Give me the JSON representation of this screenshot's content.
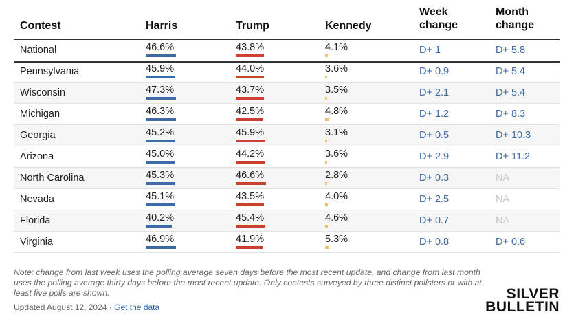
{
  "table": {
    "headers": [
      "Contest",
      "Harris",
      "Trump",
      "Kennedy",
      "Week change",
      "Month change"
    ],
    "colors": [
      "#3e6aa8",
      "#c8432f",
      "#f4c46a"
    ],
    "rows": [
      {
        "contest": "National",
        "values": [
          46.6,
          43.8,
          4.1
        ],
        "value_labels": [
          "46.6%",
          "43.8%",
          "4.1%"
        ],
        "week": "D+ 1",
        "month": "D+ 5.8"
      },
      {
        "contest": "Pennsylvania",
        "values": [
          45.9,
          44.0,
          3.6
        ],
        "value_labels": [
          "45.9%",
          "44.0%",
          "3.6%"
        ],
        "week": "D+ 0.9",
        "month": "D+ 5.4"
      },
      {
        "contest": "Wisconsin",
        "values": [
          47.3,
          43.7,
          3.5
        ],
        "value_labels": [
          "47.3%",
          "43.7%",
          "3.5%"
        ],
        "week": "D+ 2.1",
        "month": "D+ 5.4"
      },
      {
        "contest": "Michigan",
        "values": [
          46.3,
          42.5,
          4.8
        ],
        "value_labels": [
          "46.3%",
          "42.5%",
          "4.8%"
        ],
        "week": "D+ 1.2",
        "month": "D+ 8.3"
      },
      {
        "contest": "Georgia",
        "values": [
          45.2,
          45.9,
          3.1
        ],
        "value_labels": [
          "45.2%",
          "45.9%",
          "3.1%"
        ],
        "week": "D+ 0.5",
        "month": "D+ 10.3"
      },
      {
        "contest": "Arizona",
        "values": [
          45.0,
          44.2,
          3.6
        ],
        "value_labels": [
          "45.0%",
          "44.2%",
          "3.6%"
        ],
        "week": "D+ 2.9",
        "month": "D+ 11.2"
      },
      {
        "contest": "North Carolina",
        "values": [
          45.3,
          46.6,
          2.8
        ],
        "value_labels": [
          "45.3%",
          "46.6%",
          "2.8%"
        ],
        "week": "D+ 0.3",
        "month": "NA"
      },
      {
        "contest": "Nevada",
        "values": [
          45.1,
          43.5,
          4.0
        ],
        "value_labels": [
          "45.1%",
          "43.5%",
          "4.0%"
        ],
        "week": "D+ 2.5",
        "month": "NA"
      },
      {
        "contest": "Florida",
        "values": [
          40.2,
          45.4,
          4.6
        ],
        "value_labels": [
          "40.2%",
          "45.4%",
          "4.6%"
        ],
        "week": "D+ 0.7",
        "month": "NA"
      },
      {
        "contest": "Virginia",
        "values": [
          46.9,
          41.9,
          5.3
        ],
        "value_labels": [
          "46.9%",
          "41.9%",
          "5.3%"
        ],
        "week": "D+ 0.8",
        "month": "D+ 0.6"
      }
    ]
  },
  "footer": {
    "note": "Note: change from last week uses the polling average seven days before the most recent update, and change from last month uses the polling average thirty days before the most recent update. Only contests surveyed by three distinct pollsters or with at least five polls are shown.",
    "updated": "Updated August 12, 2024 ·",
    "link": "Get the data",
    "logo_top": "SILVER",
    "logo_bottom": "BULLETIN"
  }
}
